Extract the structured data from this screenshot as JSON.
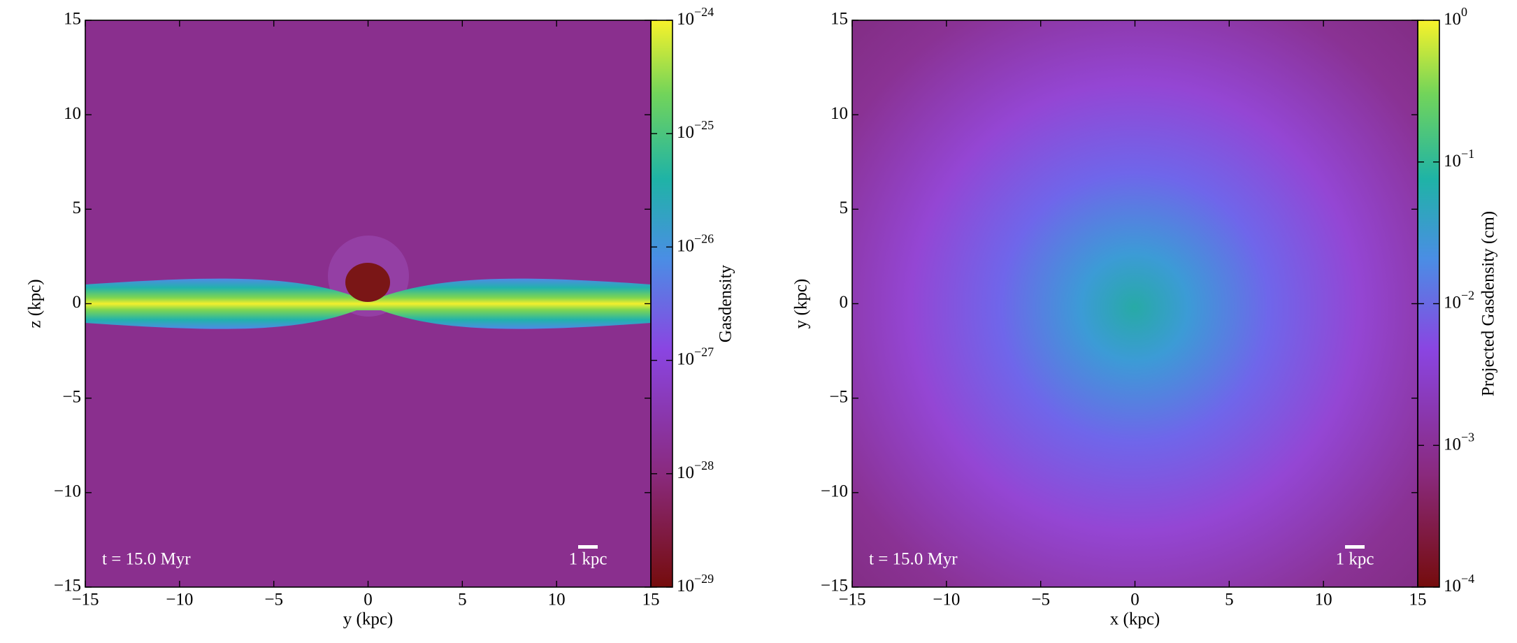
{
  "chart_data": [
    {
      "type": "slice",
      "xlabel": "y  (kpc)",
      "ylabel": "z  (kpc)",
      "xlim": [
        -15,
        15
      ],
      "ylim": [
        -15,
        15
      ],
      "xticks": [
        {
          "value": -15,
          "label": "−15"
        },
        {
          "value": -10,
          "label": "−10"
        },
        {
          "value": -5,
          "label": "−5"
        },
        0,
        5,
        10,
        15
      ],
      "yticks": [
        {
          "value": -15,
          "label": "−15"
        },
        {
          "value": -10,
          "label": "−10"
        },
        {
          "value": -5,
          "label": "−5"
        },
        0,
        5,
        10,
        15
      ],
      "colorbar_label": "Gasdensity",
      "colorbar_scale": "log",
      "clim": [
        1e-29,
        1e-24
      ],
      "cticks": [
        {
          "value": 1e-29,
          "label": "10",
          "exponent": "−29"
        },
        {
          "value": 1e-28,
          "label": "10",
          "exponent": "−28"
        },
        {
          "value": 1e-27,
          "label": "10",
          "exponent": "−27"
        },
        {
          "value": 1e-26,
          "label": "10",
          "exponent": "−26"
        },
        {
          "value": 1e-25,
          "label": "10",
          "exponent": "−25"
        },
        {
          "value": 1e-24,
          "label": "10",
          "exponent": "−24"
        }
      ],
      "annotations": [
        "t = 15.0 Myr",
        "1 kpc"
      ]
    },
    {
      "type": "projection",
      "xlabel": "x  (kpc)",
      "ylabel": "y  (kpc)",
      "xlim": [
        -15,
        15
      ],
      "ylim": [
        -15,
        15
      ],
      "xticks": [
        {
          "value": -15,
          "label": "−15"
        },
        {
          "value": -10,
          "label": "−10"
        },
        {
          "value": -5,
          "label": "−5"
        },
        0,
        5,
        10,
        15
      ],
      "yticks": [
        {
          "value": -15,
          "label": "−15"
        },
        {
          "value": -10,
          "label": "−10"
        },
        {
          "value": -5,
          "label": "−5"
        },
        0,
        5,
        10,
        15
      ],
      "colorbar_label": "Projected Gasdensity  (cm)",
      "colorbar_scale": "log",
      "clim": [
        0.0001,
        1
      ],
      "cticks": [
        {
          "value": 0.0001,
          "label": "10",
          "exponent": "−4"
        },
        {
          "value": 0.001,
          "label": "10",
          "exponent": "−3"
        },
        {
          "value": 0.01,
          "label": "10",
          "exponent": "−2"
        },
        {
          "value": 0.1,
          "label": "10",
          "exponent": "−1"
        },
        {
          "value": 1,
          "label": "10",
          "exponent": "0"
        }
      ],
      "annotations": [
        "t = 15.0 Myr",
        "1 kpc"
      ]
    }
  ]
}
